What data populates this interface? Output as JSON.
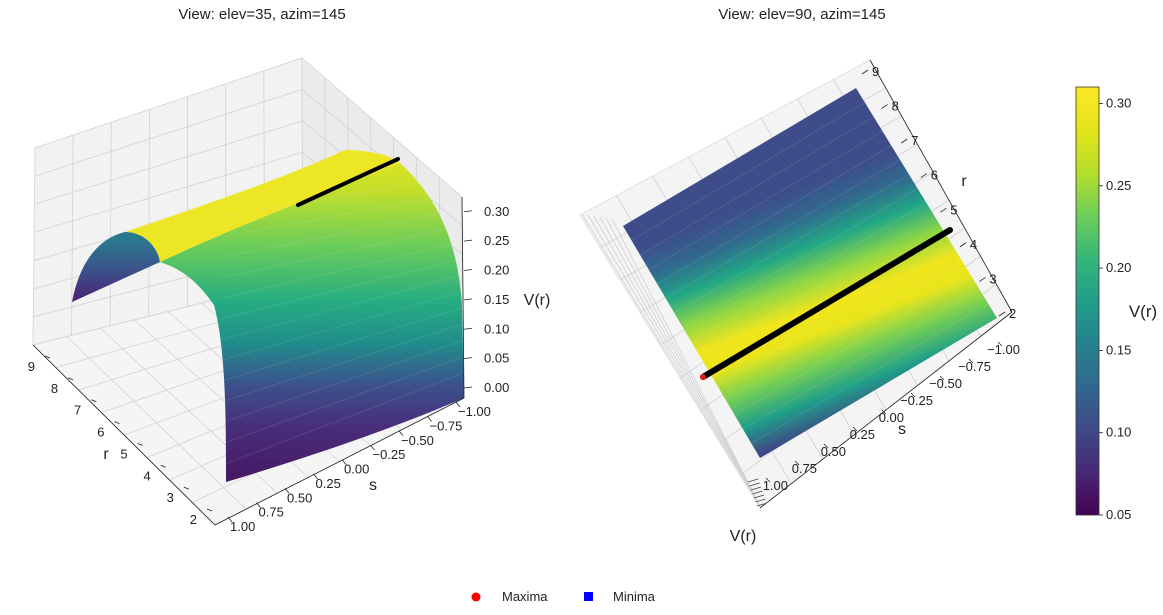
{
  "chart_data": [
    {
      "type": "surface",
      "title": "View: elev=35, azim=145",
      "xlabel": "s",
      "ylabel": "r",
      "zlabel": "V(r)",
      "s_ticks": [
        "−1.00",
        "−0.75",
        "−0.50",
        "−0.25",
        "0.00",
        "0.25",
        "0.50",
        "0.75",
        "1.00"
      ],
      "r_ticks": [
        "2",
        "3",
        "4",
        "5",
        "6",
        "7",
        "8",
        "9"
      ],
      "z_ticks": [
        "0.00",
        "0.05",
        "0.10",
        "0.15",
        "0.20",
        "0.25",
        "0.30"
      ],
      "xlim": [
        -1,
        1
      ],
      "ylim": [
        2,
        9
      ],
      "zlim": [
        0,
        0.32
      ],
      "elev": 35,
      "azim": 145,
      "colormap": "viridis",
      "surface": "V(r) independent of s; V(r) rises from about 0.05 at r = 2 to a maximum of about 0.31 near r = 5, then falls to about 0.05 at r = 9",
      "maxima_line": {
        "r": 5,
        "s_range": [
          -1,
          1
        ],
        "V": 0.31
      }
    },
    {
      "type": "surface",
      "title": "View: elev=90, azim=145",
      "xlabel": "s",
      "ylabel": "r",
      "zlabel": "V(r)",
      "s_ticks": [
        "−1.00",
        "−0.75",
        "−0.50",
        "−0.25",
        "0.00",
        "0.25",
        "0.50",
        "0.75",
        "1.00"
      ],
      "r_ticks": [
        "2",
        "3",
        "4",
        "5",
        "6",
        "7",
        "8",
        "9"
      ],
      "xlim": [
        -1,
        1
      ],
      "ylim": [
        2,
        9
      ],
      "elev": 90,
      "azim": 145,
      "colormap": "viridis",
      "maxima_line": {
        "r": 5,
        "s_range": [
          -1,
          1
        ],
        "V": 0.31
      }
    }
  ],
  "colorbar": {
    "label": "V(r)",
    "ticks": [
      "0.05",
      "0.10",
      "0.15",
      "0.20",
      "0.25",
      "0.30"
    ],
    "tick_values": [
      0.05,
      0.1,
      0.15,
      0.2,
      0.25,
      0.3
    ],
    "range": [
      0.05,
      0.31
    ],
    "colormap": "viridis"
  },
  "legend": {
    "placement": "bottom-center",
    "items": [
      {
        "label": "Maxima",
        "marker": "circle",
        "color": "#ff0000"
      },
      {
        "label": "Minima",
        "marker": "square",
        "color": "#0000ff"
      }
    ]
  },
  "colors": {
    "maxima_line": "#000000",
    "pane_grid": "#d4d4d4"
  }
}
